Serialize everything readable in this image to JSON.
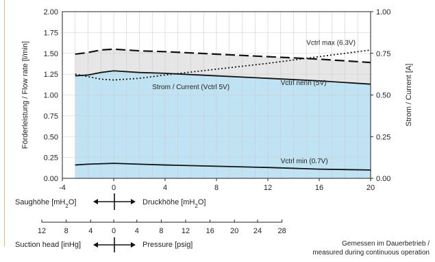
{
  "chart_data": {
    "type": "line",
    "title": "",
    "ylabel": "Förderleistung / Flow rate [l/min]",
    "y2label": "Strom / Current [A]",
    "xlim": [
      -4,
      20
    ],
    "ylim": [
      0,
      2
    ],
    "y2lim": [
      0,
      1
    ],
    "grid": true,
    "x_ticks": [
      "-4",
      "0",
      "4",
      "8",
      "12",
      "16",
      "20"
    ],
    "y_ticks": [
      "0.00",
      "0.25",
      "0.50",
      "0.75",
      "1.00",
      "1.25",
      "1.50",
      "1.75",
      "2.00"
    ],
    "y2_ticks": [
      "0.00",
      "0.25",
      "0.50",
      "0.75",
      "1.00"
    ],
    "x_minor_step": 1,
    "series": [
      {
        "name": "Vctrl max (6.3V)",
        "axis": "left",
        "style": "dashed",
        "x": [
          -3,
          -2,
          -1,
          0,
          2,
          4,
          8,
          12,
          16,
          20
        ],
        "y": [
          1.49,
          1.51,
          1.54,
          1.55,
          1.53,
          1.52,
          1.49,
          1.46,
          1.43,
          1.39
        ]
      },
      {
        "name": "Vctrl nenn (5V)",
        "axis": "left",
        "style": "solid",
        "x": [
          -3,
          -2,
          -1,
          0,
          2,
          4,
          8,
          12,
          16,
          20
        ],
        "y": [
          1.23,
          1.24,
          1.27,
          1.29,
          1.27,
          1.26,
          1.23,
          1.2,
          1.17,
          1.13
        ]
      },
      {
        "name": "Vctrl min (0.7V)",
        "axis": "left",
        "style": "solid",
        "x": [
          -3,
          -2,
          -1,
          0,
          2,
          4,
          8,
          12,
          16,
          20
        ],
        "y": [
          0.16,
          0.17,
          0.175,
          0.18,
          0.17,
          0.16,
          0.145,
          0.13,
          0.11,
          0.1
        ]
      },
      {
        "name": "Strom / Current (Vctrl 5V)",
        "axis": "right",
        "style": "dotted",
        "x": [
          -3,
          -2,
          -1,
          0,
          2,
          4,
          8,
          12,
          16,
          20
        ],
        "y": [
          0.625,
          0.61,
          0.595,
          0.59,
          0.6,
          0.62,
          0.655,
          0.69,
          0.73,
          0.77
        ]
      }
    ],
    "bands": [
      {
        "between": [
          "Vctrl max (6.3V)",
          "Vctrl nenn (5V)"
        ],
        "color": "#e6e6e6"
      },
      {
        "between": [
          "Vctrl nenn (5V)",
          "baseline"
        ],
        "color": "#bfe3f3"
      }
    ],
    "annotations": [
      {
        "text": "Vctrl max (6.3V)",
        "x": 15,
        "y": 1.6
      },
      {
        "text": "Vctrl nenn (5V)",
        "x": 13,
        "y": 1.12
      },
      {
        "text": "Vctrl min (0.7V)",
        "x": 13,
        "y": 0.18
      },
      {
        "text": "Strom / Current (Vctrl 5V)",
        "x": 3,
        "y": 1.07
      }
    ],
    "secondary_axes": [
      {
        "label_left": "Saughöhe [mH₂O]",
        "label_right": "Druckhöhe [mH₂O]",
        "ticks": []
      },
      {
        "label_left": "Suction head [inHg]",
        "label_right": "Pressure [psig]",
        "ticks": [
          "12",
          "8",
          "4",
          "0",
          "4",
          "8",
          "12",
          "16",
          "20",
          "24",
          "28"
        ],
        "tick_x": [
          -5.6,
          -3.7,
          -1.8,
          0,
          1.8,
          3.7,
          5.6,
          7.5,
          9.4,
          11.2,
          13.1
        ]
      }
    ],
    "note_lines": [
      "Gemessen im Dauerbetrieb /",
      "measured during continuous operation"
    ]
  },
  "colors": {
    "max_line": "#111111",
    "nenn_line": "#111111",
    "min_line": "#111111",
    "current_line": "#111111",
    "band_gray": "#e6e6e6",
    "band_blue": "#bfe3f3",
    "grid": "#cccccc",
    "accent_rule": "#f2b27a"
  }
}
